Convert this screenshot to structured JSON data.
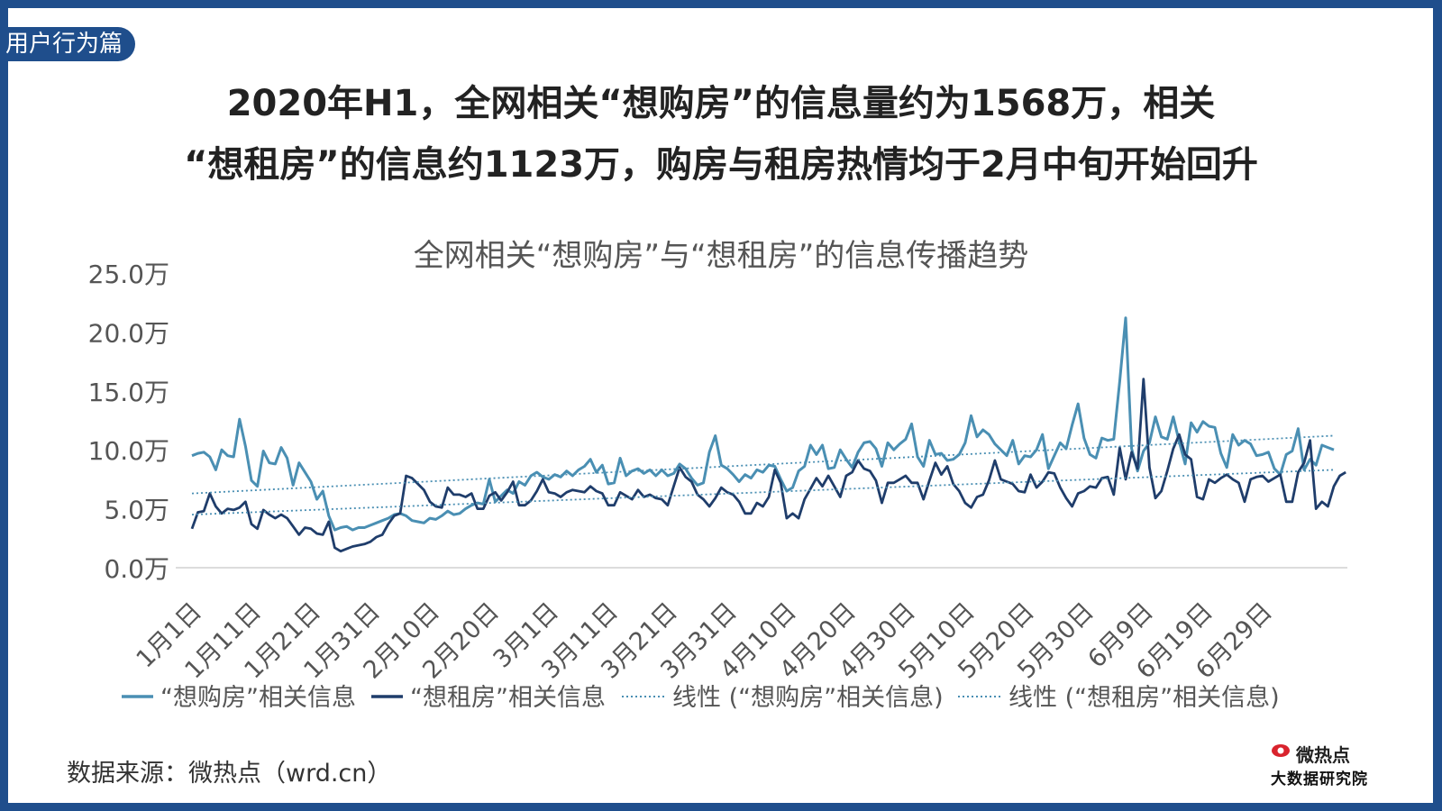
{
  "tag": "用户行为篇",
  "headline": {
    "line1": "2020年H1，全网相关“想购房”的信息量约为1568万，相关",
    "line2": "“想租房”的信息约1123万，购房与租房热情均于2月中旬开始回升"
  },
  "source": "数据来源：微热点（wrd.cn）",
  "logo": {
    "name": "微热点",
    "subtitle": "大数据研究院"
  },
  "colors": {
    "frame": "#1f4e8c",
    "buy": "#4a8fb3",
    "rent": "#1f3d6b"
  },
  "chart_data": {
    "type": "line",
    "title": "全网相关“想购房”与“想租房”的信息传播趋势",
    "ylim": [
      0,
      25
    ],
    "y_ticks": [
      "0.0万",
      "5.0万",
      "10.0万",
      "15.0万",
      "20.0万",
      "25.0万"
    ],
    "x_ticks": [
      "1月1日",
      "1月11日",
      "1月21日",
      "1月31日",
      "2月10日",
      "2月20日",
      "3月1日",
      "3月11日",
      "3月21日",
      "3月31日",
      "4月10日",
      "4月20日",
      "4月30日",
      "5月10日",
      "5月20日",
      "5月30日",
      "6月9日",
      "6月19日",
      "6月29日"
    ],
    "x_start": "2020-01-01",
    "legend_position": "bottom",
    "series": [
      {
        "name": "“想购房”相关信息",
        "style": "solid",
        "values": [
          9.5,
          9.7,
          9.8,
          9.4,
          8.3,
          10.0,
          9.5,
          9.4,
          12.6,
          10.3,
          7.4,
          6.9,
          9.9,
          8.9,
          8.8,
          10.2,
          9.3,
          7.0,
          8.9,
          8.1,
          7.3,
          5.8,
          6.5,
          4.4,
          3.2,
          3.4,
          3.5,
          3.2,
          3.4,
          3.4,
          3.6,
          3.8,
          4.0,
          4.2,
          4.5,
          4.6,
          4.4,
          4.0,
          3.9,
          3.8,
          4.2,
          4.1,
          4.4,
          4.8,
          4.5,
          4.6,
          5.0,
          5.3,
          5.5,
          5.4,
          7.5,
          5.6,
          6.1,
          6.6,
          6.3,
          7.3,
          7.0,
          7.8,
          8.1,
          7.7,
          7.5,
          7.9,
          7.7,
          8.2,
          7.8,
          8.3,
          8.6,
          9.2,
          8.1,
          8.7,
          7.1,
          7.2,
          9.3,
          7.8,
          8.2,
          8.4,
          8.0,
          8.3,
          7.8,
          8.3,
          7.8,
          8.0,
          8.8,
          8.4,
          7.6,
          7.0,
          7.2,
          9.8,
          11.2,
          8.7,
          8.4,
          7.9,
          7.3,
          7.9,
          7.6,
          8.3,
          8.1,
          8.7,
          8.6,
          7.5,
          6.5,
          6.8,
          8.2,
          8.6,
          10.4,
          9.6,
          10.4,
          8.4,
          8.5,
          10.0,
          9.2,
          8.5,
          9.8,
          10.6,
          10.7,
          10.1,
          8.6,
          10.6,
          10.0,
          10.5,
          10.9,
          12.2,
          9.4,
          8.6,
          10.8,
          9.6,
          9.7,
          9.1,
          9.2,
          9.6,
          10.6,
          12.9,
          11.1,
          11.7,
          11.3,
          10.5,
          10.0,
          9.5,
          10.8,
          8.8,
          9.5,
          9.4,
          10.0,
          11.3,
          8.4,
          9.5,
          10.6,
          10.1,
          12.1,
          13.9,
          11.0,
          9.6,
          9.3,
          11.0,
          10.8,
          10.9,
          15.8,
          21.2,
          10.1,
          8.2,
          9.9,
          10.6,
          12.8,
          11.1,
          10.9,
          12.8,
          10.7,
          8.8,
          12.3,
          11.5,
          12.4,
          12.0,
          11.9,
          9.7,
          8.5,
          11.3,
          10.4,
          10.8,
          10.5,
          9.5,
          9.6,
          9.8,
          8.4,
          7.9,
          9.6,
          9.9,
          11.8,
          8.3,
          9.2,
          8.7,
          10.4,
          10.2,
          10.0
        ]
      },
      {
        "name": "“想租房”相关信息",
        "style": "solid",
        "values": [
          3.3,
          4.7,
          4.8,
          6.3,
          5.2,
          4.6,
          5.0,
          4.9,
          5.1,
          5.6,
          3.7,
          3.3,
          4.9,
          4.5,
          4.2,
          4.5,
          4.2,
          3.5,
          2.8,
          3.4,
          3.3,
          2.9,
          2.8,
          3.9,
          1.7,
          1.4,
          1.6,
          1.8,
          1.9,
          2.0,
          2.2,
          2.6,
          2.8,
          3.7,
          4.4,
          4.6,
          7.8,
          7.6,
          7.1,
          6.6,
          5.6,
          5.2,
          5.1,
          6.8,
          6.2,
          6.2,
          6.0,
          6.3,
          5.0,
          5.0,
          6.1,
          6.4,
          5.7,
          6.4,
          7.3,
          5.3,
          5.3,
          5.7,
          6.5,
          7.5,
          6.4,
          6.3,
          6.0,
          6.4,
          6.6,
          6.5,
          6.4,
          6.9,
          6.5,
          6.3,
          5.3,
          5.3,
          6.4,
          6.1,
          5.8,
          6.6,
          6.0,
          6.2,
          5.9,
          5.8,
          5.3,
          6.9,
          8.5,
          7.7,
          7.3,
          6.2,
          5.8,
          5.2,
          5.9,
          6.8,
          6.4,
          6.2,
          5.6,
          4.6,
          4.6,
          5.5,
          5.2,
          6.0,
          8.3,
          7.2,
          4.2,
          4.6,
          4.2,
          5.8,
          6.7,
          7.6,
          6.9,
          7.8,
          6.9,
          6.0,
          7.8,
          8.1,
          9.1,
          8.4,
          8.2,
          7.4,
          5.5,
          7.2,
          7.2,
          7.5,
          7.8,
          7.2,
          7.2,
          5.8,
          7.4,
          8.9,
          7.9,
          8.6,
          7.1,
          6.5,
          5.5,
          5.1,
          6.0,
          6.2,
          7.4,
          9.1,
          7.5,
          7.3,
          7.1,
          6.5,
          6.4,
          7.9,
          6.8,
          7.3,
          8.1,
          8.0,
          6.8,
          5.9,
          5.2,
          6.3,
          6.5,
          6.9,
          6.8,
          7.6,
          7.7,
          6.2,
          10.2,
          7.5,
          9.8,
          8.4,
          16.0,
          8.5,
          5.9,
          6.5,
          8.2,
          10.1,
          11.3,
          9.6,
          9.2,
          6.0,
          5.8,
          7.5,
          7.2,
          7.6,
          7.9,
          7.5,
          7.2,
          5.6,
          7.5,
          7.7,
          7.8,
          7.3,
          7.6,
          7.9,
          5.6,
          5.6,
          8.1,
          8.9,
          10.8,
          5.0,
          5.6,
          5.2,
          6.9,
          7.8,
          8.1
        ]
      },
      {
        "name": "线性 (“想购房”相关信息)",
        "style": "dotted",
        "values": [
          6.3,
          11.2
        ]
      },
      {
        "name": "线性 (“想租房”相关信息)",
        "style": "dotted",
        "values": [
          4.5,
          8.3
        ]
      }
    ]
  }
}
